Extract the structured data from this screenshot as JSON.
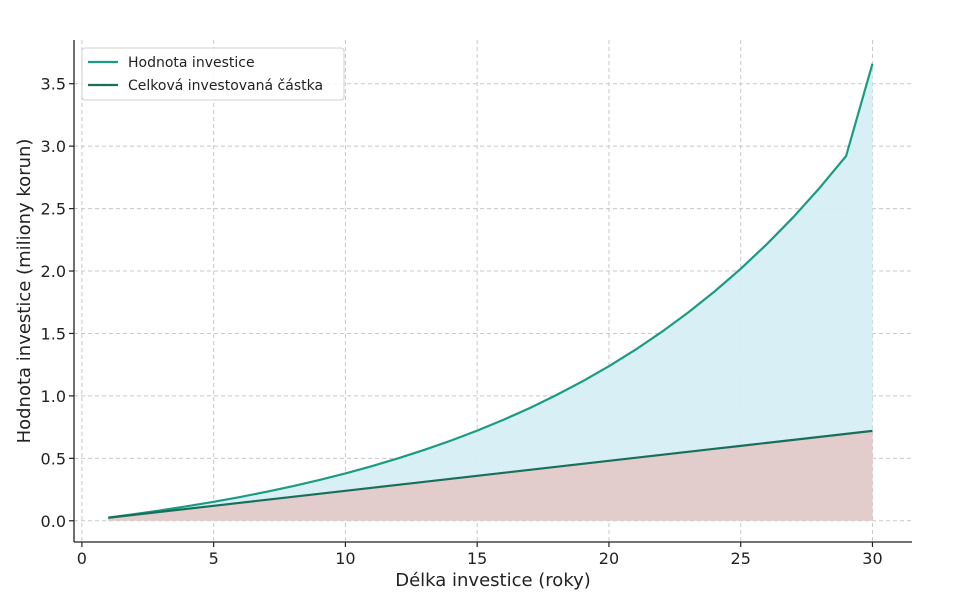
{
  "chart_data": {
    "type": "line",
    "title": "",
    "xlabel": "Délka investice (roky)",
    "ylabel": "Hodnota investice (miliony korun)",
    "xlim": [
      -0.3,
      31.5
    ],
    "ylim": [
      -0.17,
      3.85
    ],
    "xticks": [
      0,
      5,
      10,
      15,
      20,
      25,
      30
    ],
    "xtick_labels": [
      "0",
      "5",
      "10",
      "15",
      "20",
      "25",
      "30"
    ],
    "yticks": [
      0.0,
      0.5,
      1.0,
      1.5,
      2.0,
      2.5,
      3.0,
      3.5
    ],
    "ytick_labels": [
      "0.0",
      "0.5",
      "1.0",
      "1.5",
      "2.0",
      "2.5",
      "3.0",
      "3.5"
    ],
    "grid": true,
    "legend_position": "top-left",
    "x": [
      1,
      2,
      3,
      4,
      5,
      6,
      7,
      8,
      9,
      10,
      11,
      12,
      13,
      14,
      15,
      16,
      17,
      18,
      19,
      20,
      21,
      22,
      23,
      24,
      25,
      26,
      27,
      28,
      29,
      30
    ],
    "series": [
      {
        "name": "Hodnota investice",
        "color": "#1a9c80",
        "fill": "#d7eef5",
        "values": [
          0.025,
          0.053,
          0.084,
          0.117,
          0.152,
          0.19,
          0.232,
          0.277,
          0.326,
          0.379,
          0.437,
          0.5,
          0.568,
          0.642,
          0.722,
          0.809,
          0.903,
          1.006,
          1.117,
          1.238,
          1.369,
          1.512,
          1.667,
          1.835,
          2.018,
          2.217,
          2.432,
          2.667,
          2.921,
          3.66
        ]
      },
      {
        "name": "Celková investovaná částka",
        "color": "#17705b",
        "fill": "#e2cccc",
        "values": [
          0.024,
          0.048,
          0.072,
          0.096,
          0.12,
          0.144,
          0.168,
          0.192,
          0.216,
          0.24,
          0.264,
          0.288,
          0.312,
          0.336,
          0.36,
          0.384,
          0.408,
          0.432,
          0.456,
          0.48,
          0.504,
          0.528,
          0.552,
          0.576,
          0.6,
          0.624,
          0.648,
          0.672,
          0.696,
          0.72
        ]
      }
    ]
  }
}
